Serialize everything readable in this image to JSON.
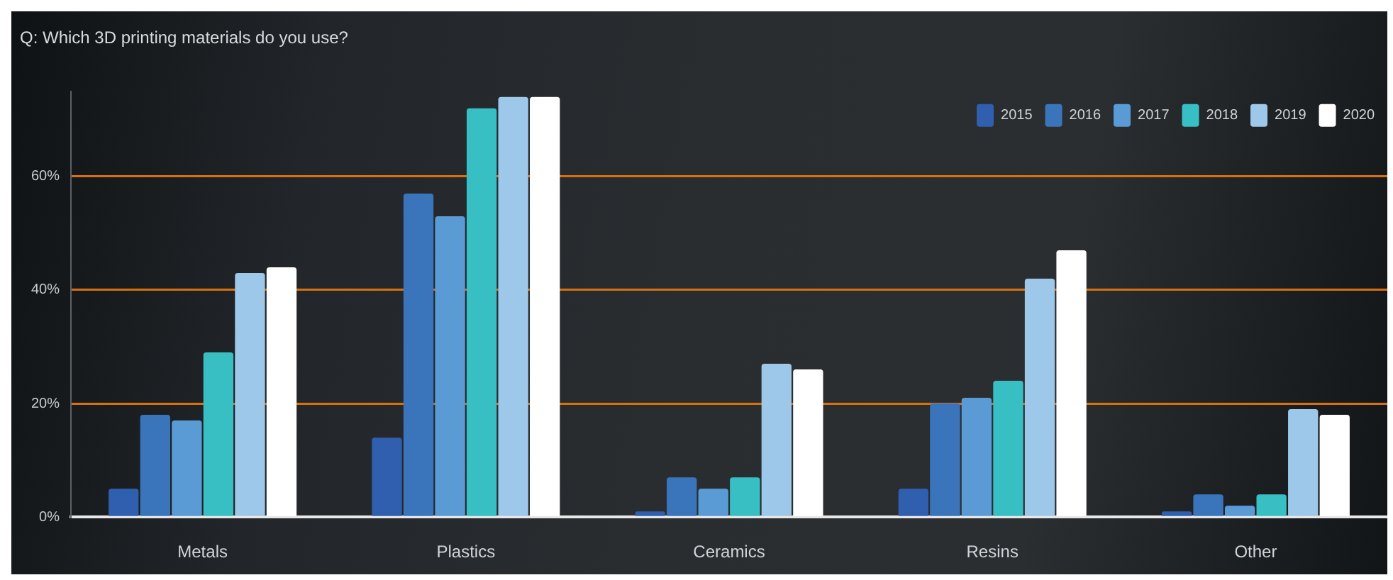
{
  "chart_data": {
    "type": "bar",
    "title": "Q: Which 3D printing materials do you use?",
    "categories": [
      "Metals",
      "Plastics",
      "Ceramics",
      "Resins",
      "Other"
    ],
    "series": [
      {
        "name": "2015",
        "color": "#2f5fae",
        "values": [
          5,
          14,
          1,
          5,
          1
        ]
      },
      {
        "name": "2016",
        "color": "#3a75bb",
        "values": [
          18,
          57,
          7,
          20,
          4
        ]
      },
      {
        "name": "2017",
        "color": "#5a9bd5",
        "values": [
          17,
          53,
          5,
          21,
          2
        ]
      },
      {
        "name": "2018",
        "color": "#38bfc4",
        "values": [
          29,
          72,
          7,
          24,
          4
        ]
      },
      {
        "name": "2019",
        "color": "#9dc8ea",
        "values": [
          43,
          74,
          27,
          42,
          19
        ]
      },
      {
        "name": "2020",
        "color": "#ffffff",
        "values": [
          44,
          74,
          26,
          47,
          18
        ]
      }
    ],
    "ylim": [
      0,
      75
    ],
    "yticks": [
      {
        "value": 0,
        "label": "0%"
      },
      {
        "value": 20,
        "label": "20%"
      },
      {
        "value": 40,
        "label": "40%"
      },
      {
        "value": 60,
        "label": "60%"
      }
    ],
    "grid": "y",
    "legend": "top right"
  }
}
